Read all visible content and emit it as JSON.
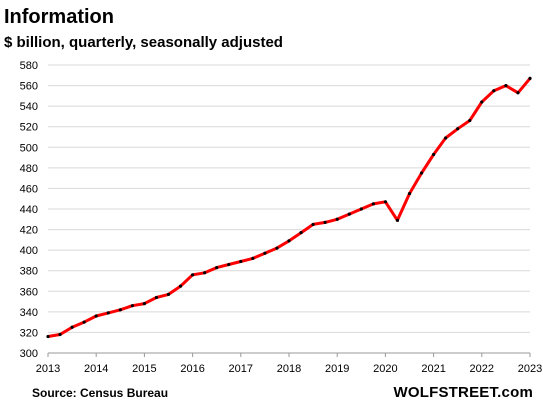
{
  "chart_data": {
    "type": "line",
    "title": "Information",
    "subtitle": "$ billion, quarterly, seasonally adjusted",
    "source": "Source: Census Bureau",
    "brand": "WOLFSTREET.com",
    "ylim": [
      300,
      580
    ],
    "yticks": [
      300,
      320,
      340,
      360,
      380,
      400,
      420,
      440,
      460,
      480,
      500,
      520,
      540,
      560,
      580
    ],
    "xlim": [
      2013,
      2023
    ],
    "xticks": [
      "2013",
      "2014",
      "2015",
      "2016",
      "2017",
      "2018",
      "2019",
      "2020",
      "2021",
      "2022",
      "2023"
    ],
    "grid": "horizontal",
    "line_color": "#ff0000",
    "marker_color": "#000000",
    "series": [
      {
        "x": [
          2013.0,
          2013.25,
          2013.5,
          2013.75,
          2014.0,
          2014.25,
          2014.5,
          2014.75,
          2015.0,
          2015.25,
          2015.5,
          2015.75,
          2016.0,
          2016.25,
          2016.5,
          2016.75,
          2017.0,
          2017.25,
          2017.5,
          2017.75,
          2018.0,
          2018.25,
          2018.5,
          2018.75,
          2019.0,
          2019.25,
          2019.5,
          2019.75,
          2020.0,
          2020.25,
          2020.5,
          2020.75,
          2021.0,
          2021.25,
          2021.5,
          2021.75,
          2022.0,
          2022.25,
          2022.5,
          2022.75,
          2023.0
        ],
        "values": [
          316,
          318,
          325,
          330,
          336,
          339,
          342,
          346,
          348,
          354,
          357,
          365,
          376,
          378,
          383,
          386,
          389,
          392,
          397,
          402,
          409,
          417,
          425,
          427,
          430,
          435,
          440,
          445,
          447,
          429,
          455,
          475,
          493,
          509,
          518,
          526,
          544,
          555,
          560,
          553,
          567
        ]
      }
    ]
  }
}
